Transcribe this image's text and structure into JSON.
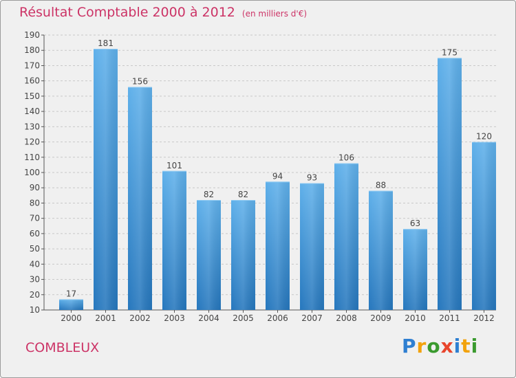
{
  "chart_data": {
    "type": "bar",
    "title": "Résultat Comptable 2000 à 2012",
    "subtitle": "(en milliers d'€)",
    "categories": [
      "2000",
      "2001",
      "2002",
      "2003",
      "2004",
      "2005",
      "2006",
      "2007",
      "2008",
      "2009",
      "2010",
      "2011",
      "2012"
    ],
    "values": [
      17,
      181,
      156,
      101,
      82,
      82,
      94,
      93,
      106,
      88,
      63,
      175,
      120
    ],
    "ylim": [
      10,
      190
    ],
    "yticks": [
      10,
      20,
      30,
      40,
      50,
      60,
      70,
      80,
      90,
      100,
      110,
      120,
      130,
      140,
      150,
      160,
      170,
      180,
      190
    ],
    "xlabel": "",
    "ylabel": "",
    "bar_color": "#3a8fd6"
  },
  "footer": {
    "city": "COMBLEUX",
    "logo_letters": [
      "P",
      "r",
      "o",
      "x",
      "i",
      "t",
      "i"
    ],
    "logo_colors": [
      "#2e7fd1",
      "#f2a20c",
      "#3a9a2e",
      "#e8452c",
      "#2e7fd1",
      "#f2a20c",
      "#3a9a2e"
    ]
  }
}
